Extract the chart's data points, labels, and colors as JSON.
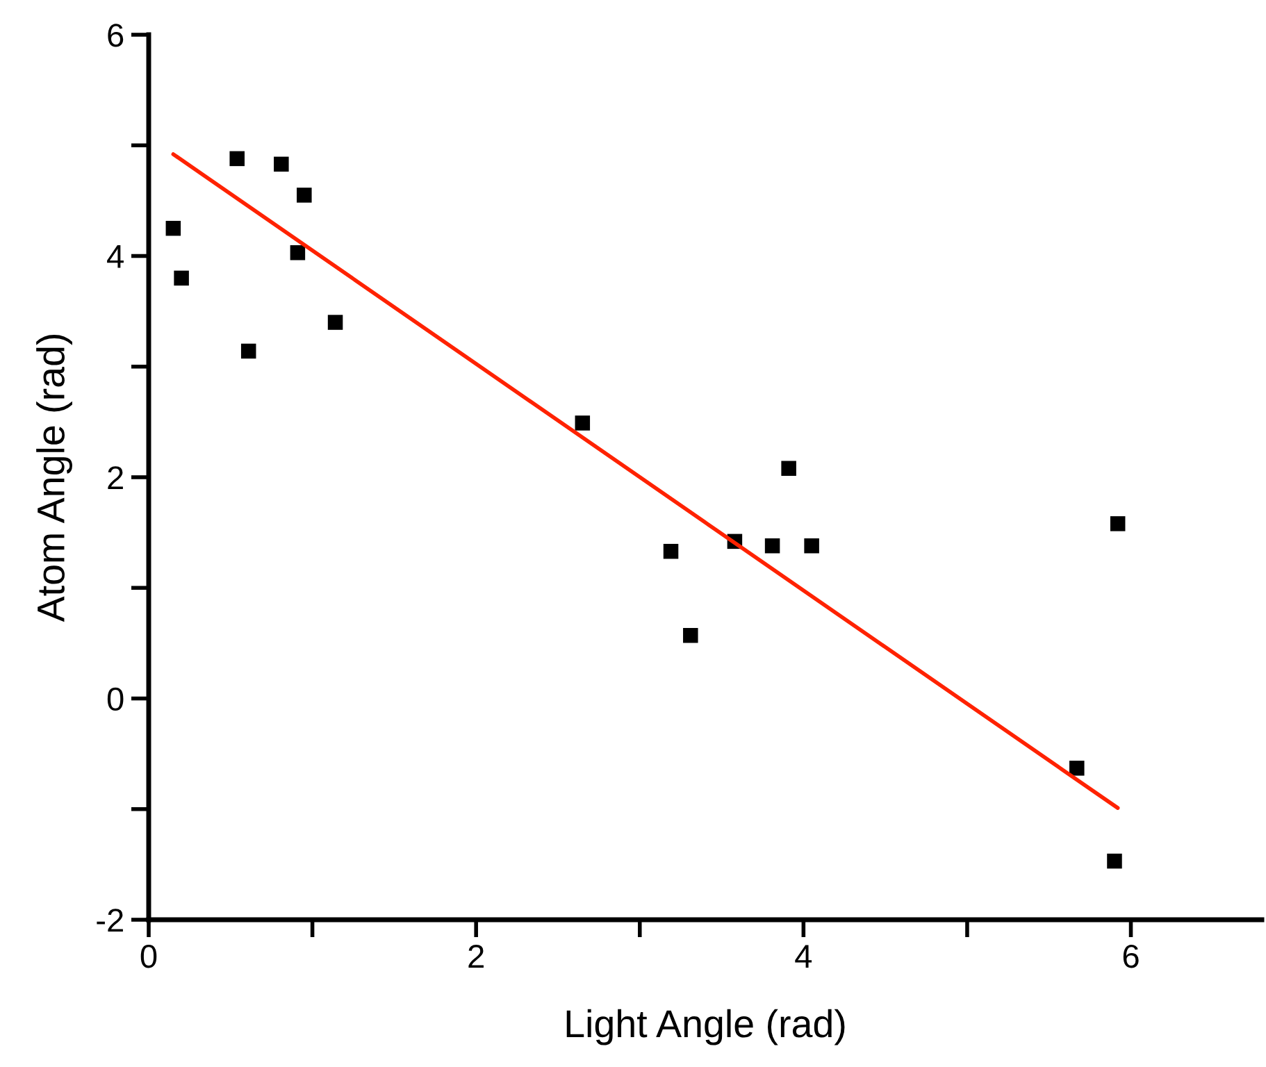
{
  "chart_data": {
    "type": "scatter",
    "xlabel": "Light Angle (rad)",
    "ylabel": "Atom Angle (rad)",
    "xlim": [
      0,
      6.8
    ],
    "ylim": [
      -2,
      6
    ],
    "xticks": [
      0,
      {
        "value": 1,
        "label": null
      },
      2,
      {
        "value": 3,
        "label": null
      },
      4,
      {
        "value": 5,
        "label": null
      },
      6
    ],
    "yticks": [
      -2,
      {
        "value": -1,
        "label": null
      },
      0,
      {
        "value": 1,
        "label": null
      },
      2,
      {
        "value": 3,
        "label": null
      },
      4,
      {
        "value": 5,
        "label": null
      },
      6
    ],
    "grid": false,
    "legend": false,
    "series": [
      {
        "color": "#000000",
        "marker": "square",
        "x": [
          0.15,
          0.2,
          0.54,
          0.61,
          0.81,
          0.95,
          0.91,
          1.14,
          2.65,
          3.19,
          3.31,
          3.58,
          3.81,
          3.91,
          4.05,
          5.67,
          5.92,
          5.9
        ],
        "values": [
          4.25,
          3.8,
          4.88,
          3.14,
          4.83,
          4.55,
          4.03,
          3.4,
          2.49,
          1.33,
          0.57,
          1.42,
          1.38,
          2.08,
          1.38,
          -0.63,
          1.58,
          -1.47
        ]
      },
      {
        "type": "line",
        "color": "#ff2200",
        "line_style": "solid",
        "x": [
          0.15,
          5.92
        ],
        "values": [
          4.92,
          -0.99
        ]
      }
    ]
  }
}
